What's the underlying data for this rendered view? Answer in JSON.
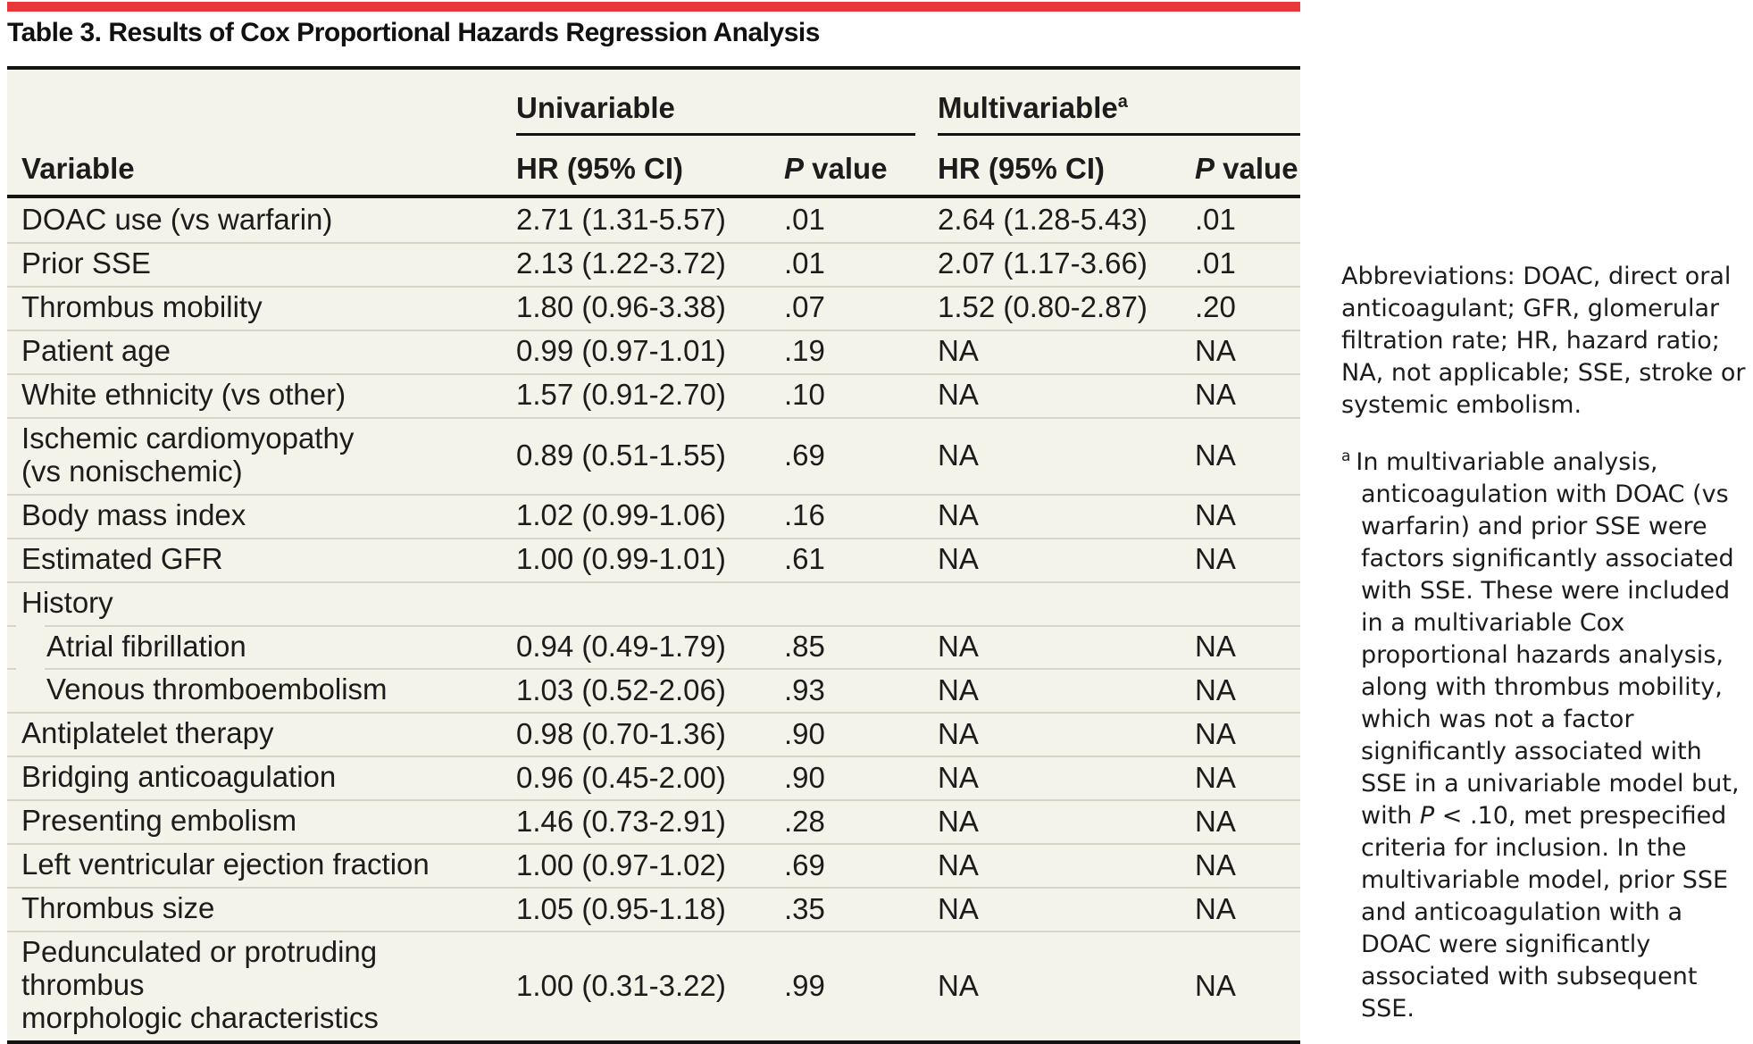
{
  "title": "Table 3. Results of Cox Proportional Hazards Regression Analysis",
  "colors": {
    "accent_red": "#e8383b",
    "table_background": "#f4f3e9",
    "rule_black": "#131313",
    "divider_tan": "#d7d5c5"
  },
  "table": {
    "group_headers": {
      "univariable": "Univariable",
      "multivariable": "Multivariable",
      "multivariable_sup": "a"
    },
    "columns": {
      "variable": "Variable",
      "hr_label": "HR (95% CI)",
      "p_italic": "P",
      "p_rest": " value"
    },
    "rows": [
      {
        "label": "DOAC use (vs warfarin)",
        "uni_hr": "2.71 (1.31-5.57)",
        "uni_p": ".01",
        "multi_hr": "2.64 (1.28-5.43)",
        "multi_p": ".01"
      },
      {
        "label": "Prior SSE",
        "uni_hr": "2.13 (1.22-3.72)",
        "uni_p": ".01",
        "multi_hr": "2.07 (1.17-3.66)",
        "multi_p": ".01"
      },
      {
        "label": "Thrombus mobility",
        "uni_hr": "1.80 (0.96-3.38)",
        "uni_p": ".07",
        "multi_hr": "1.52 (0.80-2.87)",
        "multi_p": ".20"
      },
      {
        "label": "Patient age",
        "uni_hr": "0.99 (0.97-1.01)",
        "uni_p": ".19",
        "multi_hr": "NA",
        "multi_p": "NA"
      },
      {
        "label": "White ethnicity (vs other)",
        "uni_hr": "1.57 (0.91-2.70)",
        "uni_p": ".10",
        "multi_hr": "NA",
        "multi_p": "NA"
      },
      {
        "label": "Ischemic cardiomyopathy\n(vs nonischemic)",
        "two_line": true,
        "uni_hr": "0.89 (0.51-1.55)",
        "uni_p": ".69",
        "multi_hr": "NA",
        "multi_p": "NA"
      },
      {
        "label": "Body mass index",
        "uni_hr": "1.02 (0.99-1.06)",
        "uni_p": ".16",
        "multi_hr": "NA",
        "multi_p": "NA"
      },
      {
        "label": "Estimated GFR",
        "uni_hr": "1.00 (0.99-1.01)",
        "uni_p": ".61",
        "multi_hr": "NA",
        "multi_p": "NA"
      },
      {
        "label": "History",
        "section": true
      },
      {
        "label": "Atrial fibrillation",
        "indent": true,
        "uni_hr": "0.94 (0.49-1.79)",
        "uni_p": ".85",
        "multi_hr": "NA",
        "multi_p": "NA"
      },
      {
        "label": "Venous thromboembolism",
        "indent": true,
        "uni_hr": "1.03 (0.52-2.06)",
        "uni_p": ".93",
        "multi_hr": "NA",
        "multi_p": "NA"
      },
      {
        "label": "Antiplatelet therapy",
        "uni_hr": "0.98 (0.70-1.36)",
        "uni_p": ".90",
        "multi_hr": "NA",
        "multi_p": "NA"
      },
      {
        "label": "Bridging anticoagulation",
        "uni_hr": "0.96 (0.45-2.00)",
        "uni_p": ".90",
        "multi_hr": "NA",
        "multi_p": "NA"
      },
      {
        "label": "Presenting embolism",
        "uni_hr": "1.46 (0.73-2.91)",
        "uni_p": ".28",
        "multi_hr": "NA",
        "multi_p": "NA"
      },
      {
        "label": "Left ventricular ejection fraction",
        "uni_hr": "1.00 (0.97-1.02)",
        "uni_p": ".69",
        "multi_hr": "NA",
        "multi_p": "NA"
      },
      {
        "label": "Thrombus size",
        "uni_hr": "1.05 (0.95-1.18)",
        "uni_p": ".35",
        "multi_hr": "NA",
        "multi_p": "NA"
      },
      {
        "label": "Pedunculated or protruding thrombus\nmorphologic characteristics",
        "two_line": true,
        "uni_hr": "1.00 (0.31-3.22)",
        "uni_p": ".99",
        "multi_hr": "NA",
        "multi_p": "NA"
      }
    ]
  },
  "notes": {
    "abbreviations": "Abbreviations: DOAC, direct oral anticoagulant; GFR, glomerular filtration rate; HR, hazard ratio; NA, not applicable; SSE, stroke or systemic embolism.",
    "footnote_marker": "a",
    "footnote_segments": [
      {
        "text": "In multivariable analysis, anticoagulation with DOAC (vs warfarin) and prior SSE were factors significantly associated with SSE. These were included in a multivariable Cox proportional hazards analysis, along with thrombus mobility, which was not a factor significantly associated with SSE in a univariable model but, with ",
        "italic": false
      },
      {
        "text": "P",
        "italic": true
      },
      {
        "text": " < .10, met prespecified criteria for inclusion. In the multivariable model, prior SSE and anticoagulation with a DOAC were significantly associated with subsequent SSE.",
        "italic": false
      }
    ]
  }
}
